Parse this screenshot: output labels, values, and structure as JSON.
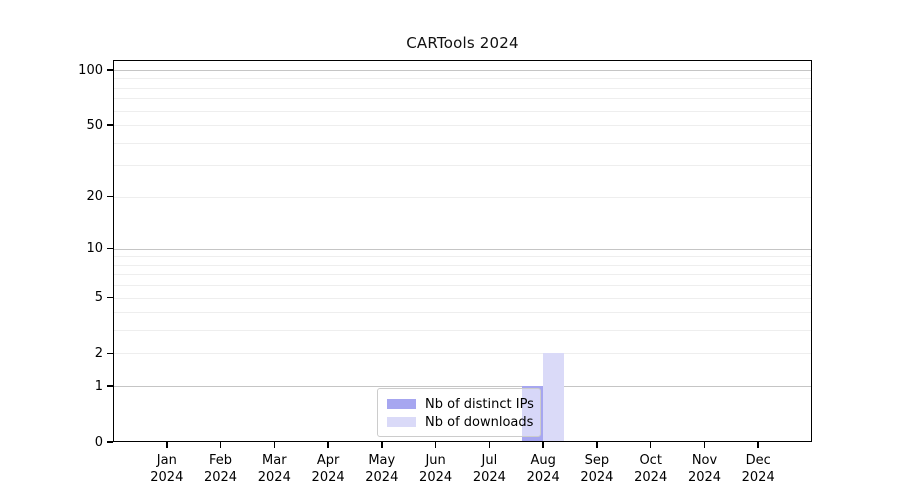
{
  "title": "CARTools 2024",
  "chart_data": {
    "type": "bar",
    "title": "CARTools 2024",
    "categories": [
      "Jan",
      "Feb",
      "Mar",
      "Apr",
      "May",
      "Jun",
      "Jul",
      "Aug",
      "Sep",
      "Oct",
      "Nov",
      "Dec"
    ],
    "category_year": "2024",
    "series": [
      {
        "name": "Nb of distinct IPs",
        "color": "#a6a6f0",
        "values": [
          0,
          0,
          0,
          0,
          0,
          0,
          0,
          1,
          0,
          0,
          0,
          0
        ]
      },
      {
        "name": "Nb of downloads",
        "color": "#dadaf8",
        "values": [
          0,
          0,
          0,
          0,
          0,
          0,
          0,
          2,
          0,
          0,
          0,
          0
        ]
      }
    ],
    "y_axis": {
      "scale": "log1p",
      "ticks": [
        0,
        1,
        2,
        5,
        10,
        20,
        50,
        100
      ],
      "major_gridlines": [
        1,
        10,
        100
      ],
      "minor_gridlines": [
        2,
        3,
        4,
        5,
        6,
        7,
        8,
        9,
        20,
        30,
        40,
        50,
        60,
        70,
        80,
        90
      ],
      "max_tick": 100
    },
    "legend": {
      "position": "lower center"
    },
    "grid": true,
    "colors": {
      "major_grid": "#c5c5c5",
      "minor_grid": "#eeeeee",
      "axis": "#000000",
      "text": "#000000"
    }
  }
}
